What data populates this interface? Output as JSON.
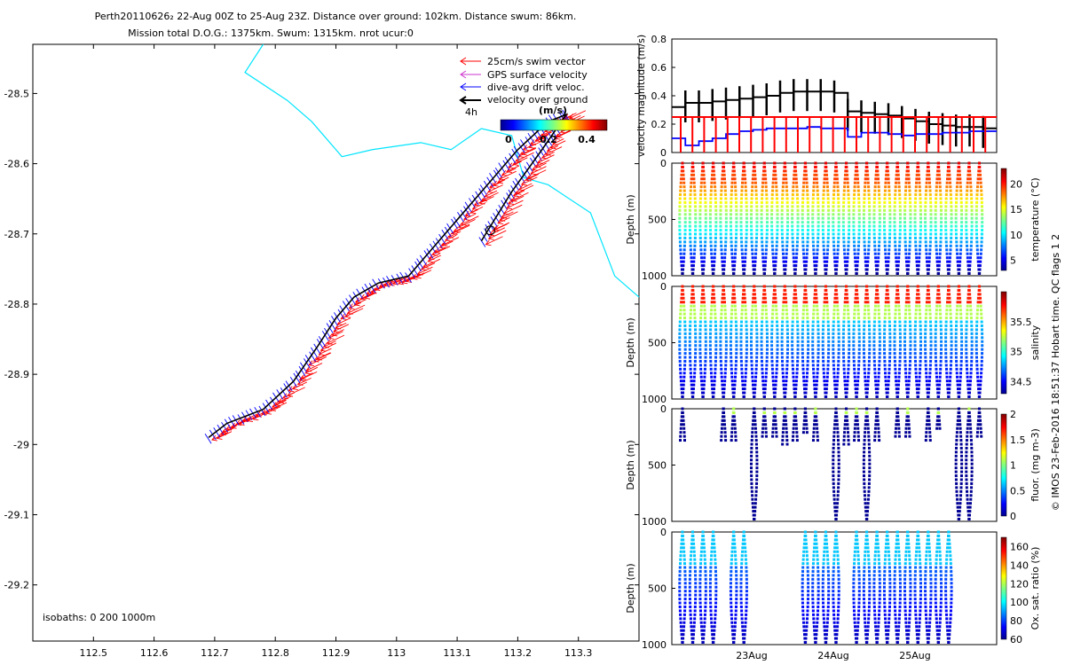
{
  "title": {
    "line1": "Perth20110626₂ 22-Aug 00Z to 25-Aug 23Z. Distance over ground: 102km. Distance swum: 86km.",
    "line2": "Mission total D.O.G.: 1375km. Swum: 1315km. nrot ucur:0"
  },
  "side_note": "© IMOS 23-Feb-2016 18:51:37 Hobart time. QC flags 1 2",
  "colors": {
    "swim": "#ff0000",
    "gps": "#cc33cc",
    "drift": "#0000ff",
    "ground": "#000000",
    "isobath": "#00e5ff"
  },
  "chart_data": [
    {
      "type": "scatter",
      "name": "map",
      "xlim": [
        112.4,
        113.4
      ],
      "ylim": [
        -29.28,
        -28.43
      ],
      "xticks": [
        112.5,
        112.6,
        112.7,
        112.8,
        112.9,
        113,
        113.1,
        113.2,
        113.3
      ],
      "xtick_labels": [
        "112.5",
        "112.6",
        "112.7",
        "112.8",
        "112.9",
        "113",
        "113.1",
        "113.2",
        "113.3"
      ],
      "yticks": [
        -28.5,
        -28.6,
        -28.7,
        -28.8,
        -28.9,
        -29,
        -29.1,
        -29.2
      ],
      "ytick_labels": [
        "-28.5",
        "-28.6",
        "-28.7",
        "-28.8",
        "-28.9",
        "-29",
        "-29.1",
        "-29.2"
      ],
      "legend": [
        {
          "label": "25cm/s swim vector",
          "color": "#ff0000"
        },
        {
          "label": "GPS surface velocity",
          "color": "#cc33cc"
        },
        {
          "label": "dive-avg drift veloc.",
          "color": "#0000ff"
        },
        {
          "label": "velocity over ground",
          "color": "#000000"
        }
      ],
      "legend_extra": "4h",
      "colorbar": {
        "label": "(m/s)",
        "ticks": [
          "0",
          "0.2",
          "0.4"
        ]
      },
      "isobath_label": "isobaths: 0   200  1000m",
      "track": [
        [
          112.69,
          -28.99
        ],
        [
          112.72,
          -28.97
        ],
        [
          112.78,
          -28.95
        ],
        [
          112.83,
          -28.91
        ],
        [
          112.87,
          -28.86
        ],
        [
          112.9,
          -28.82
        ],
        [
          112.93,
          -28.79
        ],
        [
          112.97,
          -28.77
        ],
        [
          113.02,
          -28.76
        ],
        [
          113.05,
          -28.73
        ],
        [
          113.1,
          -28.68
        ],
        [
          113.15,
          -28.63
        ],
        [
          113.2,
          -28.58
        ],
        [
          113.25,
          -28.54
        ],
        [
          113.28,
          -28.53
        ],
        [
          113.24,
          -28.58
        ],
        [
          113.19,
          -28.64
        ],
        [
          113.14,
          -28.71
        ]
      ],
      "isobath_0": [
        [
          112.78,
          -28.43
        ],
        [
          112.75,
          -28.47
        ],
        [
          112.82,
          -28.51
        ],
        [
          112.86,
          -28.54
        ],
        [
          112.88,
          -28.56
        ],
        [
          112.9,
          -28.58
        ],
        [
          112.91,
          -28.59
        ],
        [
          112.96,
          -28.58
        ],
        [
          113.04,
          -28.57
        ],
        [
          113.09,
          -28.58
        ],
        [
          113.14,
          -28.55
        ],
        [
          113.19,
          -28.56
        ],
        [
          113.21,
          -28.62
        ],
        [
          113.25,
          -28.63
        ],
        [
          113.32,
          -28.67
        ],
        [
          113.36,
          -28.76
        ],
        [
          113.4,
          -28.79
        ]
      ]
    },
    {
      "type": "line",
      "name": "velocity",
      "ylabel": "velocity magnitude (m/s)",
      "ylim": [
        0,
        0.8
      ],
      "yticks": [
        "0",
        "0.2",
        "0.4",
        "0.6",
        "0.8"
      ],
      "series": [
        {
          "color": "#000000",
          "values": [
            0.32,
            0.35,
            0.35,
            0.36,
            0.37,
            0.38,
            0.39,
            0.4,
            0.42,
            0.43,
            0.43,
            0.43,
            0.42,
            0.29,
            0.28,
            0.27,
            0.26,
            0.24,
            0.22,
            0.2,
            0.19,
            0.18,
            0.18,
            0.17
          ]
        },
        {
          "color": "#0000ff",
          "values": [
            0.1,
            0.05,
            0.08,
            0.1,
            0.13,
            0.15,
            0.16,
            0.17,
            0.17,
            0.17,
            0.18,
            0.17,
            0.17,
            0.11,
            0.14,
            0.14,
            0.13,
            0.12,
            0.13,
            0.13,
            0.14,
            0.14,
            0.15,
            0.15
          ]
        }
      ],
      "swim_speed": 0.25
    },
    {
      "type": "scatter",
      "name": "temperature",
      "ylabel": "Depth (m)",
      "cbar_label": "temperature (°C)",
      "ylim": [
        1000,
        0
      ],
      "yticks": [
        "0",
        "500",
        "1000"
      ],
      "cbar_ticks": [
        "5",
        "10",
        "15",
        "20"
      ],
      "cbar_range": [
        3,
        23
      ],
      "profiles": 30
    },
    {
      "type": "scatter",
      "name": "salinity",
      "ylabel": "Depth (m)",
      "cbar_label": "salinity",
      "ylim": [
        1000,
        0
      ],
      "yticks": [
        "0",
        "500",
        "1000"
      ],
      "cbar_ticks": [
        "34.5",
        "35",
        "35.5"
      ],
      "cbar_range": [
        34.3,
        36.0
      ],
      "profiles": 30
    },
    {
      "type": "scatter",
      "name": "fluorescence",
      "ylabel": "Depth (m)",
      "cbar_label": "fluor. (mg m-3)",
      "ylim": [
        1000,
        0
      ],
      "yticks": [
        "0",
        "500",
        "1000"
      ],
      "cbar_ticks": [
        "0",
        "0.5",
        "1",
        "1.5",
        "2"
      ],
      "cbar_range": [
        0,
        2
      ]
    },
    {
      "type": "scatter",
      "name": "oxygen",
      "ylabel": "Depth (m)",
      "cbar_label": "Ox. sat. ratio (%)",
      "ylim": [
        1000,
        0
      ],
      "yticks": [
        "0",
        "500",
        "1000"
      ],
      "cbar_ticks": [
        "60",
        "80",
        "100",
        "120",
        "140",
        "160"
      ],
      "cbar_range": [
        60,
        170
      ],
      "xtick_labels": [
        "23Aug",
        "24Aug",
        "25Aug"
      ]
    }
  ]
}
